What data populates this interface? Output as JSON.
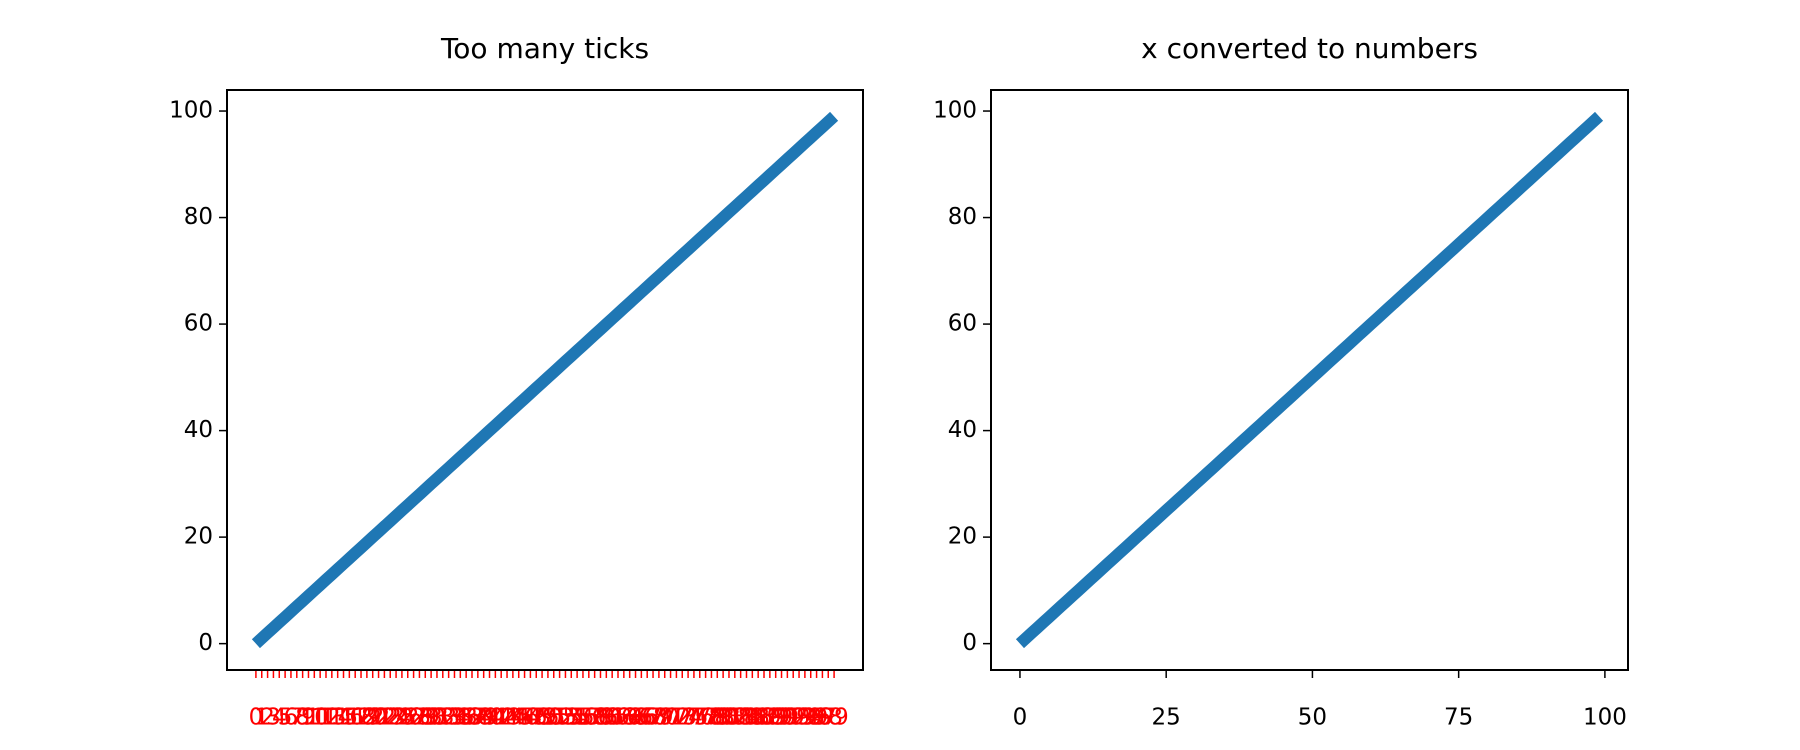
{
  "chart_data": [
    {
      "type": "line",
      "title": "Too many ticks",
      "color": "#1f77b4",
      "tick_color": "#ff0000",
      "categories": [
        "0",
        "1",
        "2",
        "3",
        "4",
        "5",
        "6",
        "7",
        "8",
        "9",
        "10",
        "11",
        "12",
        "13",
        "14",
        "15",
        "16",
        "17",
        "18",
        "19",
        "20",
        "21",
        "22",
        "23",
        "24",
        "25",
        "26",
        "27",
        "28",
        "29",
        "30",
        "31",
        "32",
        "33",
        "34",
        "35",
        "36",
        "37",
        "38",
        "39",
        "40",
        "41",
        "42",
        "43",
        "44",
        "45",
        "46",
        "47",
        "48",
        "49",
        "50",
        "51",
        "52",
        "53",
        "54",
        "55",
        "56",
        "57",
        "58",
        "59",
        "60",
        "61",
        "62",
        "63",
        "64",
        "65",
        "66",
        "67",
        "68",
        "69",
        "70",
        "71",
        "72",
        "73",
        "74",
        "75",
        "76",
        "77",
        "78",
        "79",
        "80",
        "81",
        "82",
        "83",
        "84",
        "85",
        "86",
        "87",
        "88",
        "89",
        "90",
        "91",
        "92",
        "93",
        "94",
        "95",
        "96",
        "97",
        "98",
        "99"
      ],
      "values": [
        0,
        1,
        2,
        3,
        4,
        5,
        6,
        7,
        8,
        9,
        10,
        11,
        12,
        13,
        14,
        15,
        16,
        17,
        18,
        19,
        20,
        21,
        22,
        23,
        24,
        25,
        26,
        27,
        28,
        29,
        30,
        31,
        32,
        33,
        34,
        35,
        36,
        37,
        38,
        39,
        40,
        41,
        42,
        43,
        44,
        45,
        46,
        47,
        48,
        49,
        50,
        51,
        52,
        53,
        54,
        55,
        56,
        57,
        58,
        59,
        60,
        61,
        62,
        63,
        64,
        65,
        66,
        67,
        68,
        69,
        70,
        71,
        72,
        73,
        74,
        75,
        76,
        77,
        78,
        79,
        80,
        81,
        82,
        83,
        84,
        85,
        86,
        87,
        88,
        89,
        90,
        91,
        92,
        93,
        94,
        95,
        96,
        97,
        98,
        99
      ],
      "ylim": [
        -4.95,
        103.95
      ],
      "yticks": [
        0,
        20,
        40,
        60,
        80,
        100
      ]
    },
    {
      "type": "line",
      "title": "x converted to numbers",
      "color": "#1f77b4",
      "x": [
        0,
        1,
        2,
        3,
        4,
        5,
        6,
        7,
        8,
        9,
        10,
        11,
        12,
        13,
        14,
        15,
        16,
        17,
        18,
        19,
        20,
        21,
        22,
        23,
        24,
        25,
        26,
        27,
        28,
        29,
        30,
        31,
        32,
        33,
        34,
        35,
        36,
        37,
        38,
        39,
        40,
        41,
        42,
        43,
        44,
        45,
        46,
        47,
        48,
        49,
        50,
        51,
        52,
        53,
        54,
        55,
        56,
        57,
        58,
        59,
        60,
        61,
        62,
        63,
        64,
        65,
        66,
        67,
        68,
        69,
        70,
        71,
        72,
        73,
        74,
        75,
        76,
        77,
        78,
        79,
        80,
        81,
        82,
        83,
        84,
        85,
        86,
        87,
        88,
        89,
        90,
        91,
        92,
        93,
        94,
        95,
        96,
        97,
        98,
        99
      ],
      "values": [
        0,
        1,
        2,
        3,
        4,
        5,
        6,
        7,
        8,
        9,
        10,
        11,
        12,
        13,
        14,
        15,
        16,
        17,
        18,
        19,
        20,
        21,
        22,
        23,
        24,
        25,
        26,
        27,
        28,
        29,
        30,
        31,
        32,
        33,
        34,
        35,
        36,
        37,
        38,
        39,
        40,
        41,
        42,
        43,
        44,
        45,
        46,
        47,
        48,
        49,
        50,
        51,
        52,
        53,
        54,
        55,
        56,
        57,
        58,
        59,
        60,
        61,
        62,
        63,
        64,
        65,
        66,
        67,
        68,
        69,
        70,
        71,
        72,
        73,
        74,
        75,
        76,
        77,
        78,
        79,
        80,
        81,
        82,
        83,
        84,
        85,
        86,
        87,
        88,
        89,
        90,
        91,
        92,
        93,
        94,
        95,
        96,
        97,
        98,
        99
      ],
      "xlim": [
        -4.95,
        103.95
      ],
      "xticks": [
        0,
        25,
        50,
        75,
        100
      ],
      "ylim": [
        -4.95,
        103.95
      ],
      "yticks": [
        0,
        20,
        40,
        60,
        80,
        100
      ]
    }
  ]
}
